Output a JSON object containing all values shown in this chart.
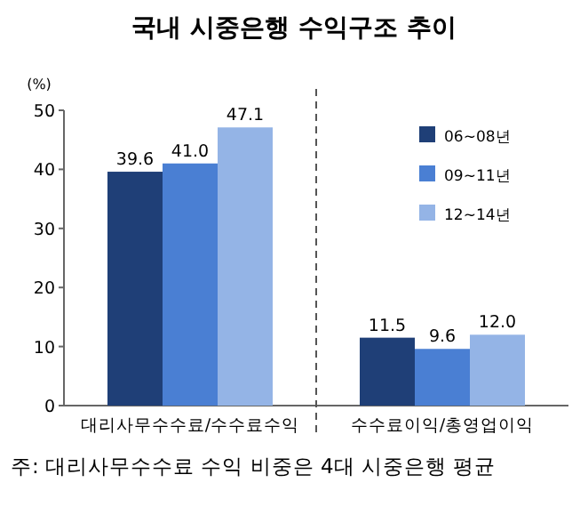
{
  "chart_data": {
    "type": "bar",
    "title": "국내 시중은행 수익구조 추이",
    "ylabel": "(%)",
    "categories": [
      "대리사무수수료/수수료수익",
      "수수료이익/총영업이익"
    ],
    "series": [
      {
        "name": "06~08년",
        "color": "#1f3f77",
        "values": [
          39.6,
          11.5
        ],
        "value_labels": [
          "39.6",
          "11.5"
        ]
      },
      {
        "name": "09~11년",
        "color": "#4a7fd3",
        "values": [
          41.0,
          9.6
        ],
        "value_labels": [
          "41.0",
          "9.6"
        ]
      },
      {
        "name": "12~14년",
        "color": "#94b4e6",
        "values": [
          47.1,
          12.0
        ],
        "value_labels": [
          "47.1",
          "12.0"
        ]
      }
    ],
    "ylim": [
      0,
      50
    ],
    "yticks": [
      0,
      10,
      20,
      30,
      40,
      50
    ],
    "legend": "top right",
    "grid": false,
    "annotations": [
      "주: 대리사무수수료 수익 비중은 4대 시중은행 평균"
    ]
  }
}
